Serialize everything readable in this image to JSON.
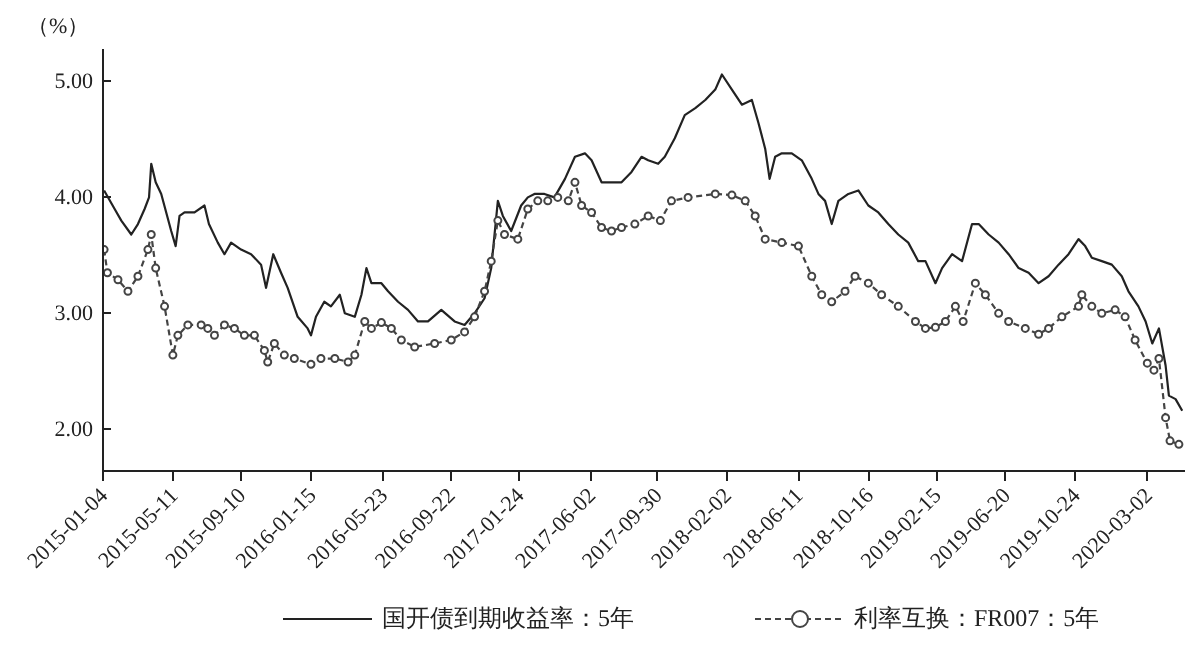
{
  "chart_data": {
    "type": "line",
    "ylabel": "（%）",
    "xlim": [
      "2015-01-04",
      "2020-05-08"
    ],
    "ylim": [
      1.63,
      5.27
    ],
    "xticks": [
      "2015-01-04",
      "2015-05-11",
      "2015-09-10",
      "2016-01-15",
      "2016-05-23",
      "2016-09-22",
      "2017-01-24",
      "2017-06-02",
      "2017-09-30",
      "2018-02-02",
      "2018-06-11",
      "2018-10-16",
      "2019-02-15",
      "2019-06-20",
      "2019-10-24",
      "2020-03-02"
    ],
    "yticks": [
      {
        "value": 2,
        "label": "2.00"
      },
      {
        "value": 3,
        "label": "3.00"
      },
      {
        "value": 4,
        "label": "4.00"
      },
      {
        "value": 5,
        "label": "5.00"
      }
    ],
    "grid": false,
    "legend": "bottom",
    "series": [
      {
        "name": "国开债到期收益率：5年",
        "color": "#222222",
        "line_style": "solid",
        "marker": "none",
        "x": [
          "2015-01-06",
          "2015-01-25",
          "2015-02-06",
          "2015-02-24",
          "2015-03-08",
          "2015-03-20",
          "2015-03-28",
          "2015-04-01",
          "2015-04-09",
          "2015-04-19",
          "2015-05-07",
          "2015-05-15",
          "2015-05-22",
          "2015-05-31",
          "2015-06-18",
          "2015-07-06",
          "2015-07-14",
          "2015-07-30",
          "2015-08-11",
          "2015-08-23",
          "2015-09-10",
          "2015-09-28",
          "2015-10-16",
          "2015-10-25",
          "2015-11-07",
          "2015-11-21",
          "2015-12-03",
          "2015-12-21",
          "2016-01-08",
          "2016-01-14",
          "2016-01-23",
          "2016-02-07",
          "2016-02-19",
          "2016-03-06",
          "2016-03-15",
          "2016-04-02",
          "2016-04-14",
          "2016-04-23",
          "2016-05-02",
          "2016-05-20",
          "2016-06-01",
          "2016-06-19",
          "2016-07-07",
          "2016-07-25",
          "2016-08-12",
          "2016-09-05",
          "2016-09-29",
          "2016-10-17",
          "2016-11-04",
          "2016-11-22",
          "2016-12-04",
          "2016-12-16",
          "2016-12-25",
          "2017-01-09",
          "2017-01-27",
          "2017-02-08",
          "2017-02-20",
          "2017-03-10",
          "2017-03-28",
          "2017-04-16",
          "2017-05-04",
          "2017-05-22",
          "2017-06-03",
          "2017-06-21",
          "2017-07-09",
          "2017-07-27",
          "2017-08-14",
          "2017-09-01",
          "2017-09-13",
          "2017-10-01",
          "2017-10-13",
          "2017-10-31",
          "2017-11-18",
          "2017-12-07",
          "2017-12-25",
          "2018-01-12",
          "2018-01-24",
          "2018-02-11",
          "2018-03-01",
          "2018-03-19",
          "2018-03-31",
          "2018-04-12",
          "2018-04-20",
          "2018-04-30",
          "2018-05-12",
          "2018-05-30",
          "2018-06-17",
          "2018-07-05",
          "2018-07-17",
          "2018-07-29",
          "2018-08-10",
          "2018-08-22",
          "2018-09-09",
          "2018-09-27",
          "2018-10-15",
          "2018-11-02",
          "2018-11-20",
          "2018-12-08",
          "2018-12-26",
          "2019-01-13",
          "2019-01-26",
          "2019-02-13",
          "2019-02-25",
          "2019-03-15",
          "2019-04-02",
          "2019-04-20",
          "2019-05-02",
          "2019-05-20",
          "2019-06-07",
          "2019-06-25",
          "2019-07-13",
          "2019-07-31",
          "2019-08-18",
          "2019-09-05",
          "2019-09-23",
          "2019-10-11",
          "2019-10-29",
          "2019-11-10",
          "2019-11-22",
          "2019-12-10",
          "2019-12-28",
          "2020-01-15",
          "2020-01-27",
          "2020-02-14",
          "2020-02-27",
          "2020-03-10",
          "2020-03-22",
          "2020-04-03",
          "2020-04-09",
          "2020-04-21",
          "2020-05-03"
        ],
        "values": [
          4.05,
          3.89,
          3.79,
          3.67,
          3.76,
          3.89,
          3.99,
          4.28,
          4.12,
          4.02,
          3.7,
          3.57,
          3.83,
          3.86,
          3.86,
          3.92,
          3.76,
          3.6,
          3.5,
          3.6,
          3.54,
          3.5,
          3.41,
          3.21,
          3.5,
          3.34,
          3.21,
          2.96,
          2.86,
          2.8,
          2.96,
          3.09,
          3.05,
          3.15,
          2.99,
          2.96,
          3.15,
          3.38,
          3.25,
          3.25,
          3.18,
          3.09,
          3.02,
          2.92,
          2.92,
          3.02,
          2.92,
          2.89,
          2.99,
          3.12,
          3.38,
          3.96,
          3.83,
          3.7,
          3.92,
          3.99,
          4.02,
          4.02,
          3.99,
          4.15,
          4.34,
          4.37,
          4.31,
          4.12,
          4.12,
          4.12,
          4.21,
          4.34,
          4.31,
          4.28,
          4.34,
          4.5,
          4.7,
          4.76,
          4.83,
          4.92,
          5.05,
          4.92,
          4.79,
          4.83,
          4.63,
          4.41,
          4.15,
          4.34,
          4.37,
          4.37,
          4.31,
          4.15,
          4.02,
          3.96,
          3.76,
          3.96,
          4.02,
          4.05,
          3.92,
          3.86,
          3.76,
          3.67,
          3.6,
          3.44,
          3.44,
          3.25,
          3.38,
          3.5,
          3.44,
          3.76,
          3.76,
          3.67,
          3.6,
          3.5,
          3.38,
          3.34,
          3.25,
          3.31,
          3.41,
          3.5,
          3.63,
          3.57,
          3.47,
          3.44,
          3.41,
          3.31,
          3.18,
          3.05,
          2.92,
          2.73,
          2.86,
          2.54,
          2.28,
          2.25,
          2.15
        ]
      },
      {
        "name": "利率互换：FR007：5年",
        "color": "#444444",
        "line_style": "dashed",
        "marker": "circle",
        "x": [
          "2015-01-06",
          "2015-01-12",
          "2015-01-31",
          "2015-02-18",
          "2015-03-08",
          "2015-03-26",
          "2015-04-01",
          "2015-04-09",
          "2015-04-25",
          "2015-05-10",
          "2015-05-19",
          "2015-06-06",
          "2015-06-30",
          "2015-07-12",
          "2015-07-24",
          "2015-08-11",
          "2015-08-29",
          "2015-09-16",
          "2015-10-04",
          "2015-10-22",
          "2015-10-28",
          "2015-11-09",
          "2015-11-27",
          "2015-12-15",
          "2016-01-14",
          "2016-02-01",
          "2016-02-26",
          "2016-03-21",
          "2016-04-02",
          "2016-04-20",
          "2016-05-02",
          "2016-05-20",
          "2016-06-07",
          "2016-06-25",
          "2016-07-19",
          "2016-08-24",
          "2016-09-23",
          "2016-10-17",
          "2016-11-04",
          "2016-11-22",
          "2016-12-04",
          "2016-12-16",
          "2016-12-28",
          "2017-01-21",
          "2017-02-08",
          "2017-02-26",
          "2017-03-16",
          "2017-04-03",
          "2017-04-22",
          "2017-05-04",
          "2017-05-16",
          "2017-06-03",
          "2017-06-21",
          "2017-07-09",
          "2017-07-27",
          "2017-08-20",
          "2017-09-13",
          "2017-10-05",
          "2017-10-25",
          "2017-11-24",
          "2018-01-12",
          "2018-02-11",
          "2018-03-07",
          "2018-03-25",
          "2018-04-12",
          "2018-05-12",
          "2018-06-11",
          "2018-07-05",
          "2018-07-23",
          "2018-08-10",
          "2018-09-03",
          "2018-09-21",
          "2018-10-15",
          "2018-11-08",
          "2018-12-08",
          "2019-01-08",
          "2019-01-26",
          "2019-02-13",
          "2019-03-03",
          "2019-03-21",
          "2019-04-04",
          "2019-04-26",
          "2019-05-14",
          "2019-06-07",
          "2019-06-25",
          "2019-07-25",
          "2019-08-18",
          "2019-09-05",
          "2019-09-29",
          "2019-10-29",
          "2019-11-04",
          "2019-11-22",
          "2019-12-10",
          "2020-01-03",
          "2020-01-21",
          "2020-02-08",
          "2020-03-01",
          "2020-03-13",
          "2020-03-22",
          "2020-04-03",
          "2020-04-11",
          "2020-04-27"
        ],
        "values": [
          3.54,
          3.34,
          3.28,
          3.18,
          3.31,
          3.54,
          3.67,
          3.38,
          3.05,
          2.63,
          2.8,
          2.89,
          2.89,
          2.86,
          2.8,
          2.89,
          2.86,
          2.8,
          2.8,
          2.67,
          2.57,
          2.73,
          2.63,
          2.6,
          2.55,
          2.6,
          2.6,
          2.57,
          2.63,
          2.92,
          2.86,
          2.91,
          2.86,
          2.76,
          2.7,
          2.73,
          2.76,
          2.83,
          2.96,
          3.18,
          3.44,
          3.79,
          3.67,
          3.63,
          3.89,
          3.96,
          3.96,
          3.99,
          3.96,
          4.12,
          3.92,
          3.86,
          3.73,
          3.7,
          3.73,
          3.76,
          3.83,
          3.79,
          3.96,
          3.99,
          4.02,
          4.01,
          3.96,
          3.83,
          3.63,
          3.6,
          3.57,
          3.31,
          3.15,
          3.09,
          3.18,
          3.31,
          3.25,
          3.15,
          3.05,
          2.92,
          2.86,
          2.87,
          2.92,
          3.05,
          2.92,
          3.25,
          3.15,
          2.99,
          2.92,
          2.86,
          2.81,
          2.86,
          2.96,
          3.05,
          3.15,
          3.05,
          2.99,
          3.02,
          2.96,
          2.76,
          2.56,
          2.5,
          2.6,
          2.09,
          1.89,
          1.86
        ]
      }
    ]
  }
}
